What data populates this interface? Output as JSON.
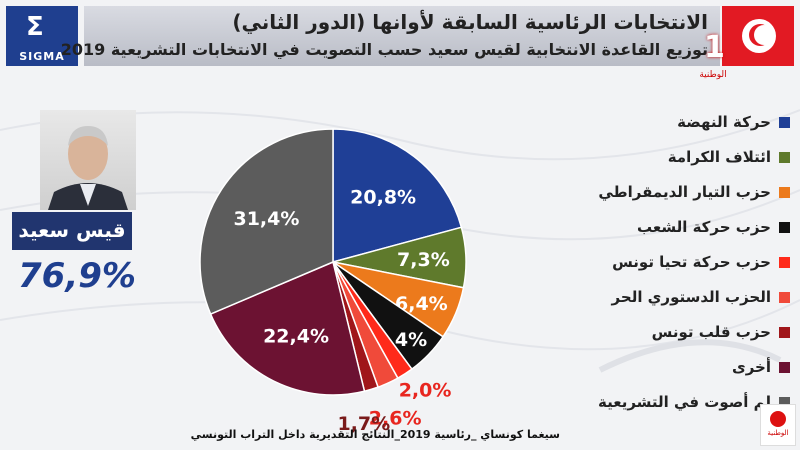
{
  "header": {
    "logo_text": "SIGMA",
    "title": "الانتخابات الرئاسية السابقة لأوانها (الدور الثاني)",
    "subtitle": "توزيع القاعدة الانتخابية لقيس سعيد حسب التصويت في الانتخابات التشريعية 2019",
    "tv_number": "1",
    "tv_name": "الوطنية",
    "colors": {
      "logo_bg": "#1f3f8f",
      "flag": "#e21a23",
      "title_band": "#c8cad2"
    }
  },
  "candidate": {
    "name": "قيس سعيد",
    "percentage": "76,9%",
    "photo_icon": "person-portrait-icon"
  },
  "chart_data": {
    "type": "pie",
    "title": "",
    "slices": [
      {
        "name": "حركة النهضة",
        "value": 20.8,
        "label": "20,8%",
        "color": "#1f3f96",
        "label_style": "white"
      },
      {
        "name": "ائتلاف الكرامة",
        "value": 7.3,
        "label": "7,3%",
        "color": "#5f7a2c",
        "label_style": "white"
      },
      {
        "name": "حزب التيار الديمقراطي",
        "value": 6.4,
        "label": "6,4%",
        "color": "#ec7a1c",
        "label_style": "white"
      },
      {
        "name": "حزب حركة الشعب",
        "value": 5.4,
        "label": "5,4%",
        "color": "#111111",
        "label_style": "white"
      },
      {
        "name": "حزب حركة تحيا تونس",
        "value": 2.0,
        "label": "2,0%",
        "color": "#ff2a1a",
        "label_style": "red"
      },
      {
        "name": "الحزب الدستوري الحر",
        "value": 2.6,
        "label": "2,6%",
        "color": "#f04a3a",
        "label_style": "red"
      },
      {
        "name": "حزب قلب تونس",
        "value": 1.7,
        "label": "1,7%",
        "color": "#a0161a",
        "label_style": "dark"
      },
      {
        "name": "أخرى",
        "value": 22.4,
        "label": "22,4%",
        "color": "#6c1232",
        "label_style": "white"
      },
      {
        "name": "لم أصوت في التشريعية",
        "value": 31.4,
        "label": "31,4%",
        "color": "#5c5c5c",
        "label_style": "white"
      }
    ],
    "legend_position": "right"
  },
  "footer": {
    "source": "سيغما كونساي _رئاسية 2019_النتائج التقديرية داخل التراب التونسي",
    "watermark": "الوطنية"
  }
}
